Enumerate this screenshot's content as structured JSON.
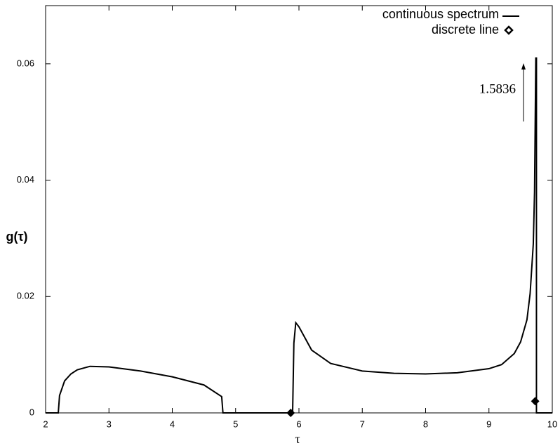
{
  "chart_data": {
    "type": "line",
    "xlabel": "τ",
    "ylabel": "g(τ)",
    "xlim": [
      2,
      10
    ],
    "ylim": [
      0,
      0.07
    ],
    "xticks": [
      2,
      3,
      4,
      5,
      6,
      7,
      8,
      9,
      10
    ],
    "yticks": [
      0,
      0.02,
      0.04,
      0.06
    ],
    "legend": "upper right",
    "annotation": "1.5836",
    "series": [
      {
        "name": "continuous spectrum",
        "color": "#000000",
        "x": [
          2,
          2.2,
          2.22,
          2.3,
          2.4,
          2.5,
          2.7,
          3.0,
          3.5,
          4.0,
          4.5,
          4.78,
          4.8,
          5.9,
          5.92,
          5.95,
          6.0,
          6.2,
          6.5,
          7.0,
          7.5,
          8.0,
          8.5,
          9.0,
          9.2,
          9.4,
          9.5,
          9.6,
          9.65,
          9.7,
          9.72,
          9.74,
          9.75,
          9.75,
          10
        ],
        "values": [
          0,
          0,
          0.003,
          0.0055,
          0.0067,
          0.0074,
          0.008,
          0.0079,
          0.0072,
          0.0062,
          0.0048,
          0.0028,
          0,
          0,
          0.012,
          0.0155,
          0.0148,
          0.0108,
          0.0085,
          0.0072,
          0.0068,
          0.0067,
          0.0069,
          0.0076,
          0.0083,
          0.0102,
          0.0122,
          0.016,
          0.0205,
          0.029,
          0.038,
          0.061,
          0.061,
          0,
          0
        ]
      },
      {
        "name": "discrete line",
        "color": "#000000",
        "marker": "diamond",
        "x": [
          5.87,
          9.73
        ],
        "values": [
          0,
          0.002
        ]
      }
    ]
  }
}
